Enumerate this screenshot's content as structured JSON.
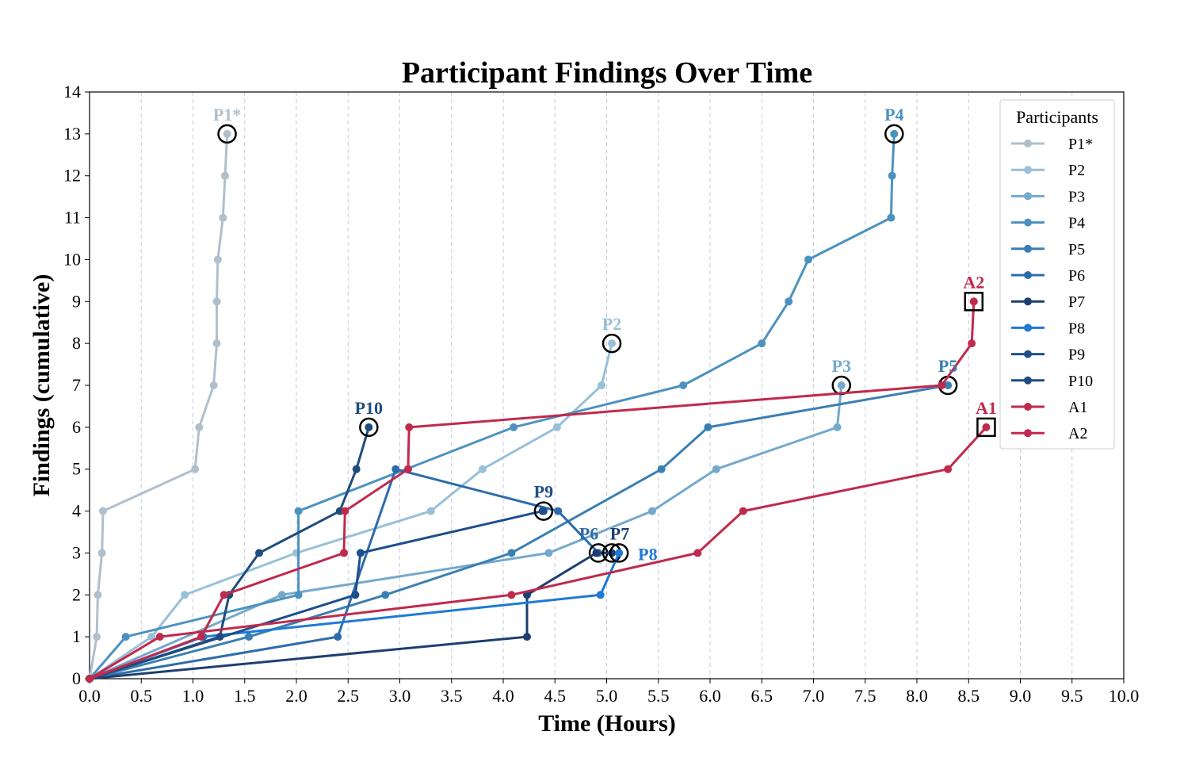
{
  "chart_data": {
    "type": "line",
    "title": "Participant Findings Over Time",
    "xlabel": "Time (Hours)",
    "ylabel": "Findings (cumulative)",
    "xlim": [
      0,
      10
    ],
    "ylim": [
      0,
      14
    ],
    "xticks": [
      "0.0",
      "0.5",
      "1.0",
      "1.5",
      "2.0",
      "2.5",
      "3.0",
      "3.5",
      "4.0",
      "4.5",
      "5.0",
      "5.5",
      "6.0",
      "6.5",
      "7.0",
      "7.5",
      "8.0",
      "8.5",
      "9.0",
      "9.5",
      "10.0"
    ],
    "yticks": [
      "0",
      "1",
      "2",
      "3",
      "4",
      "5",
      "6",
      "7",
      "8",
      "9",
      "10",
      "11",
      "12",
      "13",
      "14"
    ],
    "grid": "vertical dashed",
    "legend_title": "Participants",
    "legend_position": "upper-right",
    "series": [
      {
        "name": "P1*",
        "color": "#b0bfcc",
        "end_marker": "circle",
        "end_label": "P1*",
        "x": [
          0,
          0.07,
          0.08,
          0.12,
          0.13,
          1.02,
          1.06,
          1.2,
          1.23,
          1.23,
          1.24,
          1.29,
          1.31,
          1.33
        ],
        "y": [
          0,
          1,
          2,
          3,
          4,
          5,
          6,
          7,
          8,
          9,
          10,
          11,
          12,
          13
        ]
      },
      {
        "name": "P2",
        "color": "#98c0d8",
        "end_marker": "circle",
        "end_label": "P2",
        "x": [
          0,
          0.6,
          0.92,
          2.0,
          3.3,
          3.8,
          4.52,
          4.95,
          5.05
        ],
        "y": [
          0,
          1,
          2,
          3,
          4,
          5,
          6,
          7,
          8
        ]
      },
      {
        "name": "P3",
        "color": "#74a9cb",
        "end_marker": "circle",
        "end_label": "P3",
        "x": [
          0,
          1.86,
          4.44,
          5.44,
          6.06,
          7.23,
          7.27
        ],
        "y": [
          0,
          2,
          3,
          4,
          5,
          6,
          7
        ]
      },
      {
        "name": "P4",
        "color": "#4c92c0",
        "end_marker": "circle",
        "end_label": "P4",
        "x": [
          0,
          0.35,
          2.02,
          2.02,
          4.1,
          5.74,
          6.5,
          6.76,
          6.95,
          7.75,
          7.76,
          7.78
        ],
        "y": [
          0,
          1,
          2,
          4,
          6,
          7,
          8,
          9,
          10,
          11,
          12,
          13
        ]
      },
      {
        "name": "P5",
        "color": "#3a7fb2",
        "end_marker": "circle",
        "end_label": "P5",
        "x": [
          0,
          1.54,
          2.86,
          4.08,
          5.53,
          5.98,
          8.3
        ],
        "y": [
          0,
          1,
          2,
          3,
          5,
          6,
          7
        ]
      },
      {
        "name": "P6",
        "color": "#2d6cac",
        "end_marker": "circle",
        "end_label": "P6",
        "x": [
          0,
          2.4,
          2.96,
          4.53,
          4.92
        ],
        "y": [
          0,
          1,
          5,
          4,
          3
        ]
      },
      {
        "name": "P7",
        "color": "#1d3f70",
        "end_marker": "circle",
        "end_label": "P7",
        "x": [
          0,
          4.23,
          4.23,
          4.9,
          5.05
        ],
        "y": [
          0,
          1,
          2,
          3,
          3
        ]
      },
      {
        "name": "P8",
        "color": "#1e7ad6",
        "end_marker": "circle",
        "end_label": "P8",
        "x": [
          0,
          1.1,
          4.94,
          5.12
        ],
        "y": [
          0,
          1,
          2,
          3
        ]
      },
      {
        "name": "P9",
        "color": "#1d4f8a",
        "end_marker": "circle",
        "end_label": "P9",
        "x": [
          0,
          2.57,
          2.62,
          4.38,
          4.39
        ],
        "y": [
          0,
          2,
          3,
          4,
          4
        ]
      },
      {
        "name": "P10",
        "color": "#1f4c7d",
        "end_marker": "circle",
        "end_label": "P10",
        "x": [
          0,
          1.26,
          1.35,
          1.64,
          2.42,
          2.58,
          2.7
        ],
        "y": [
          0,
          1,
          2,
          3,
          4,
          5,
          6
        ]
      },
      {
        "name": "A1",
        "color": "#c02a4c",
        "end_marker": "square",
        "end_label": "A1",
        "x": [
          0,
          0.68,
          4.08,
          5.88,
          6.32,
          8.3,
          8.67
        ],
        "y": [
          0,
          1,
          2,
          3,
          4,
          5,
          6
        ]
      },
      {
        "name": "A2",
        "color": "#c02a4c",
        "end_marker": "square",
        "end_label": "A2",
        "x": [
          0,
          1.08,
          1.3,
          2.46,
          2.47,
          3.08,
          3.09,
          8.24,
          8.53,
          8.55
        ],
        "y": [
          0,
          1,
          2,
          3,
          4,
          5,
          6,
          7,
          8,
          9
        ]
      }
    ]
  }
}
